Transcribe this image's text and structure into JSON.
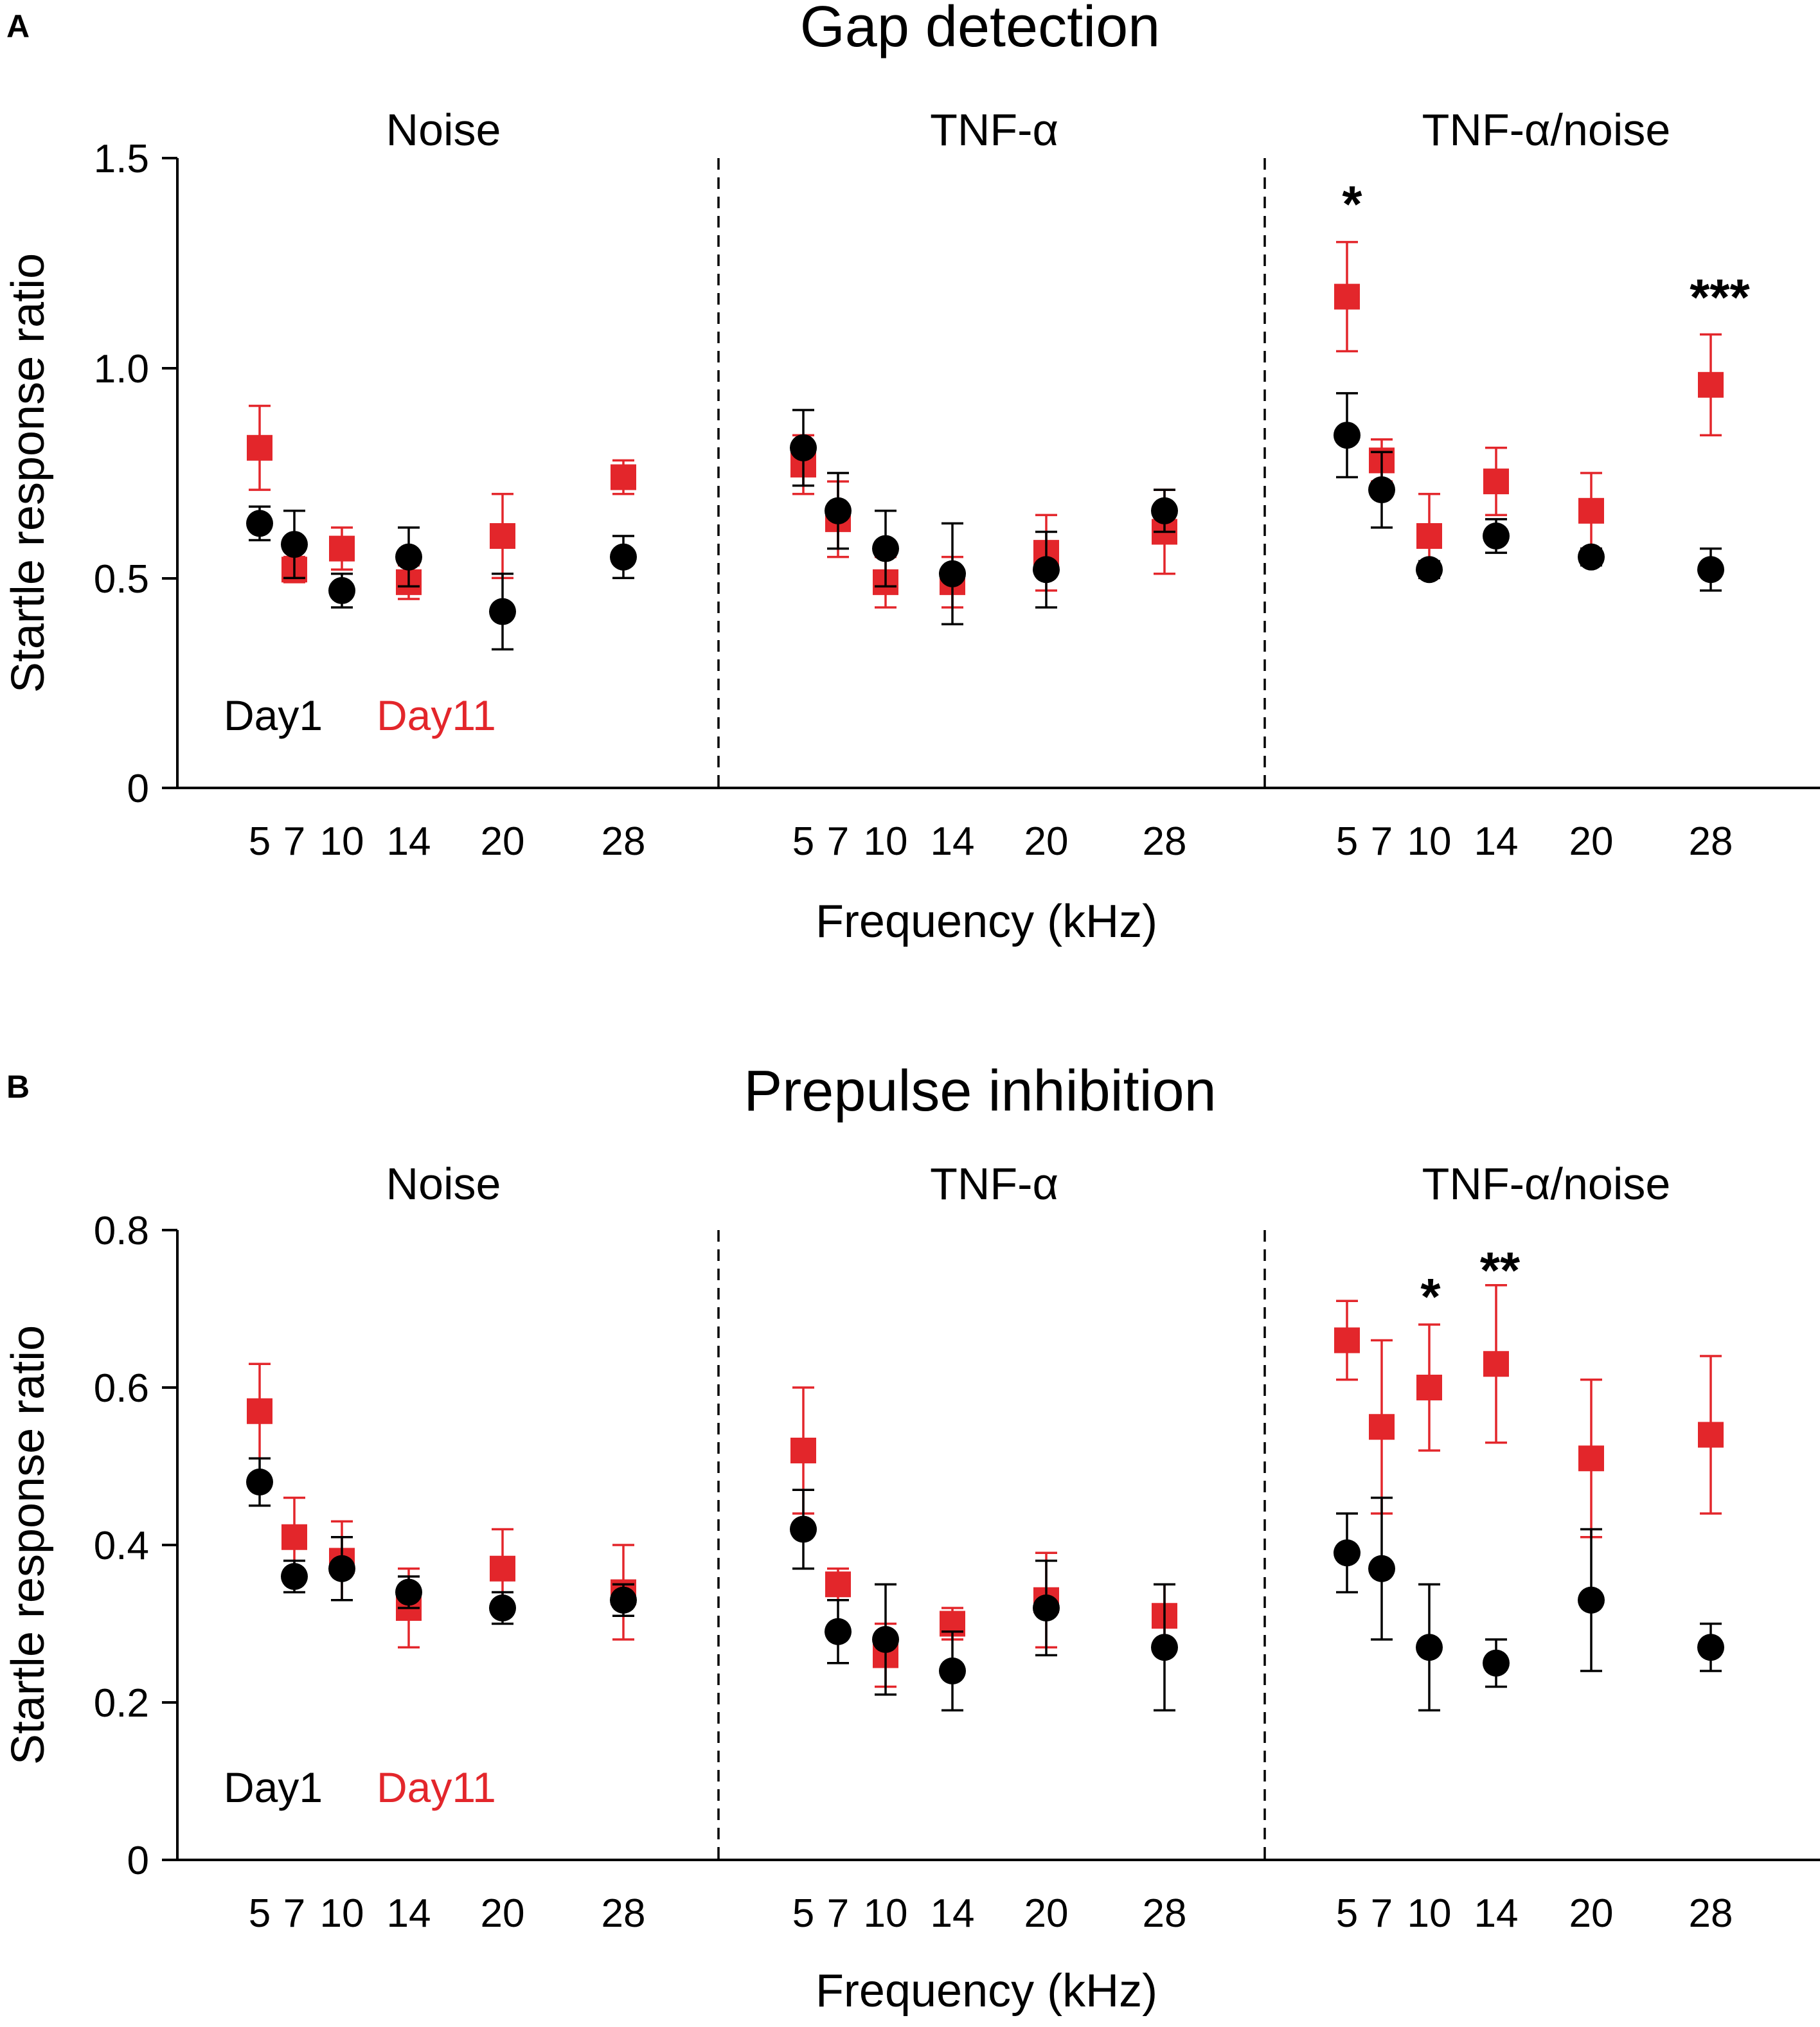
{
  "colors": {
    "day1": "#000000",
    "day11": "#e3262b"
  },
  "markers": {
    "day1": "circle",
    "day11": "square"
  },
  "chart_data": [
    {
      "panel": "A",
      "type": "scatter",
      "title": "Gap detection",
      "xlabel": "Frequency (kHz)",
      "ylabel": "Startle response ratio",
      "ylim": [
        0,
        1.5
      ],
      "yticks": [
        0,
        0.5,
        1.0,
        1.5
      ],
      "ytick_labels": [
        "0",
        "0.5",
        "1.0",
        "1.5"
      ],
      "categories": [
        "5",
        "7",
        "10",
        "14",
        "20",
        "28"
      ],
      "legend": [
        "Day1",
        "Day11"
      ],
      "groups": [
        {
          "name": "Noise",
          "series": [
            {
              "name": "Day1",
              "values": [
                0.63,
                0.58,
                0.47,
                0.55,
                0.42,
                0.55
              ],
              "err": [
                0.04,
                0.08,
                0.04,
                0.07,
                0.09,
                0.05
              ]
            },
            {
              "name": "Day11",
              "values": [
                0.81,
                0.52,
                0.57,
                0.49,
                0.6,
                0.74
              ],
              "err": [
                0.1,
                0.03,
                0.05,
                0.04,
                0.1,
                0.04
              ]
            }
          ],
          "sig": []
        },
        {
          "name": "TNF-α",
          "series": [
            {
              "name": "Day1",
              "values": [
                0.81,
                0.66,
                0.57,
                0.51,
                0.52,
                0.66
              ],
              "err": [
                0.09,
                0.09,
                0.09,
                0.12,
                0.09,
                0.05
              ]
            },
            {
              "name": "Day11",
              "values": [
                0.77,
                0.64,
                0.49,
                0.49,
                0.56,
                0.61
              ],
              "err": [
                0.07,
                0.09,
                0.06,
                0.06,
                0.09,
                0.1
              ]
            }
          ],
          "sig": []
        },
        {
          "name": "TNF-α/noise",
          "series": [
            {
              "name": "Day1",
              "values": [
                0.84,
                0.71,
                0.52,
                0.6,
                0.55,
                0.52
              ],
              "err": [
                0.1,
                0.09,
                0.02,
                0.04,
                0.02,
                0.05
              ]
            },
            {
              "name": "Day11",
              "values": [
                1.17,
                0.78,
                0.6,
                0.73,
                0.66,
                0.96
              ],
              "err": [
                0.13,
                0.05,
                0.1,
                0.08,
                0.09,
                0.12
              ]
            }
          ],
          "sig": [
            {
              "category": "5",
              "label": "*"
            },
            {
              "category": "28",
              "label": "***"
            }
          ]
        }
      ]
    },
    {
      "panel": "B",
      "type": "scatter",
      "title": "Prepulse inhibition",
      "xlabel": "Frequency (kHz)",
      "ylabel": "Startle response ratio",
      "ylim": [
        0,
        0.8
      ],
      "yticks": [
        0,
        0.2,
        0.4,
        0.6,
        0.8
      ],
      "ytick_labels": [
        "0",
        "0.2",
        "0.4",
        "0.6",
        "0.8"
      ],
      "categories": [
        "5",
        "7",
        "10",
        "14",
        "20",
        "28"
      ],
      "legend": [
        "Day1",
        "Day11"
      ],
      "groups": [
        {
          "name": "Noise",
          "series": [
            {
              "name": "Day1",
              "values": [
                0.48,
                0.36,
                0.37,
                0.34,
                0.32,
                0.33
              ],
              "err": [
                0.03,
                0.02,
                0.04,
                0.02,
                0.02,
                0.02
              ]
            },
            {
              "name": "Day11",
              "values": [
                0.57,
                0.41,
                0.38,
                0.32,
                0.37,
                0.34
              ],
              "err": [
                0.06,
                0.05,
                0.05,
                0.05,
                0.05,
                0.06
              ]
            }
          ],
          "sig": []
        },
        {
          "name": "TNF-α",
          "series": [
            {
              "name": "Day1",
              "values": [
                0.42,
                0.29,
                0.28,
                0.24,
                0.32,
                0.27
              ],
              "err": [
                0.05,
                0.04,
                0.07,
                0.05,
                0.06,
                0.08
              ]
            },
            {
              "name": "Day11",
              "values": [
                0.52,
                0.35,
                0.26,
                0.3,
                0.33,
                0.31
              ],
              "err": [
                0.08,
                0.02,
                0.04,
                0.02,
                0.06,
                0.04
              ]
            }
          ],
          "sig": []
        },
        {
          "name": "TNF-α/noise",
          "series": [
            {
              "name": "Day1",
              "values": [
                0.39,
                0.37,
                0.27,
                0.25,
                0.33,
                0.27
              ],
              "err": [
                0.05,
                0.09,
                0.08,
                0.03,
                0.09,
                0.03
              ]
            },
            {
              "name": "Day11",
              "values": [
                0.66,
                0.55,
                0.6,
                0.63,
                0.51,
                0.54
              ],
              "err": [
                0.05,
                0.11,
                0.08,
                0.1,
                0.1,
                0.1
              ]
            }
          ],
          "sig": [
            {
              "category": "10",
              "label": "*"
            },
            {
              "category": "14",
              "label": "**"
            }
          ]
        }
      ]
    }
  ]
}
